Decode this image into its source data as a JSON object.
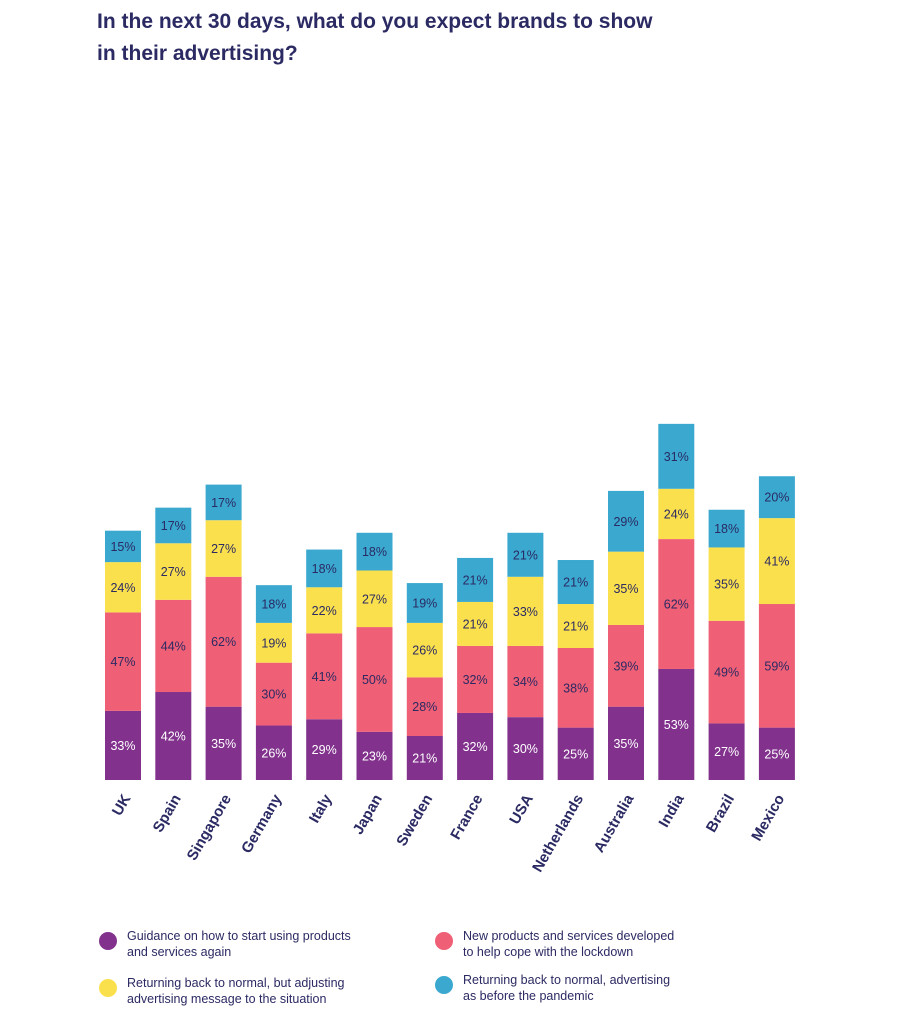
{
  "chart_data": {
    "type": "bar",
    "stacked": true,
    "title": "In the next 30 days, what do you expect brands to show in their advertising?",
    "categories": [
      "UK",
      "Spain",
      "Singapore",
      "Germany",
      "Italy",
      "Japan",
      "Sweden",
      "France",
      "USA",
      "Netherlands",
      "Australia",
      "India",
      "Brazil",
      "Mexico"
    ],
    "series": [
      {
        "name": "Guidance on how to start using products and services again",
        "color": "#82328d",
        "values": [
          33,
          42,
          35,
          26,
          29,
          23,
          21,
          32,
          30,
          25,
          35,
          53,
          27,
          25
        ],
        "labels": [
          "33%",
          "42%",
          "35%",
          "26%",
          "29%",
          "23%",
          "21%",
          "32%",
          "30%",
          "25%",
          "35%",
          "53%",
          "27%",
          "25%"
        ]
      },
      {
        "name": "New products and services developed to help cope with the lockdown",
        "color": "#ef5f76",
        "values": [
          47,
          44,
          62,
          30,
          41,
          50,
          28,
          32,
          34,
          38,
          39,
          62,
          49,
          59
        ],
        "labels": [
          "47%",
          "44%",
          "62%",
          "30%",
          "41%",
          "50%",
          "28%",
          "32%",
          "34%",
          "38%",
          "39%",
          "62%",
          "49%",
          "59%"
        ]
      },
      {
        "name": "Returning back to normal, but adjusting advertising message to the situation",
        "color": "#fbe04d",
        "values": [
          24,
          27,
          27,
          19,
          22,
          27,
          26,
          21,
          33,
          21,
          35,
          24,
          35,
          41
        ],
        "labels": [
          "24%",
          "27%",
          "27%",
          "19%",
          "22%",
          "27%",
          "26%",
          "21%",
          "33%",
          "21%",
          "35%",
          "24%",
          "35%",
          "41%"
        ]
      },
      {
        "name": "Returning back to normal, advertising as before the pandemic",
        "color": "#3aa8cf",
        "values": [
          15,
          17,
          17,
          18,
          18,
          18,
          19,
          21,
          21,
          21,
          29,
          31,
          18,
          20
        ],
        "labels": [
          "15%",
          "17%",
          "17%",
          "18%",
          "18%",
          "18%",
          "19%",
          "21%",
          "21%",
          "21%",
          "29%",
          "31%",
          "18%",
          "20%"
        ]
      }
    ],
    "legend_position": "bottom",
    "grid": false
  },
  "legend": {
    "items": [
      {
        "label": "Guidance on how to start using products\nand services again",
        "color": "#82328d"
      },
      {
        "label": "New products and services developed\nto help cope with the lockdown",
        "color": "#ef5f76"
      },
      {
        "label": "Returning back to normal, but adjusting\nadvertising message to the situation",
        "color": "#fbe04d"
      },
      {
        "label": "Returning back to normal, advertising\nas before the pandemic",
        "color": "#3aa8cf"
      }
    ]
  },
  "colors": {
    "title_text": "#2b2a63",
    "label_dark": "#2b2a63",
    "label_light": "#ffffff"
  }
}
